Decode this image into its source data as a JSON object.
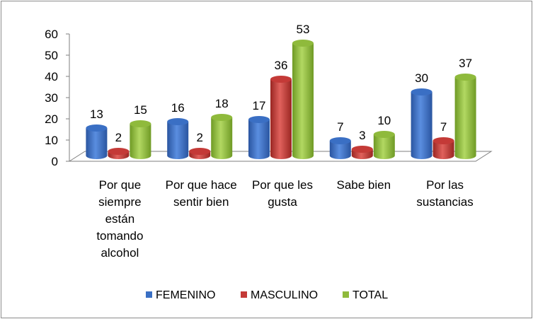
{
  "chart_data": {
    "type": "bar",
    "title": "",
    "xlabel": "",
    "ylabel": "",
    "ylim": [
      0,
      60
    ],
    "yticks": [
      "0",
      "10",
      "20",
      "30",
      "40",
      "50",
      "60"
    ],
    "categories": [
      [
        "Por que",
        "siempre",
        "están",
        "tomando",
        "alcohol"
      ],
      [
        "Por que hace",
        "sentir bien"
      ],
      [
        "Por que les",
        "gusta"
      ],
      [
        "Sabe bien"
      ],
      [
        "Por las",
        "sustancias"
      ]
    ],
    "series": [
      {
        "name": "FEMENINO",
        "color": "#3a6fc4",
        "values": [
          13,
          16,
          17,
          7,
          30
        ]
      },
      {
        "name": "MASCULINO",
        "color": "#c43a37",
        "values": [
          2,
          2,
          36,
          3,
          7
        ]
      },
      {
        "name": "TOTAL",
        "color": "#8fba3c",
        "values": [
          15,
          18,
          53,
          10,
          37
        ]
      }
    ],
    "legend_position": "bottom"
  }
}
